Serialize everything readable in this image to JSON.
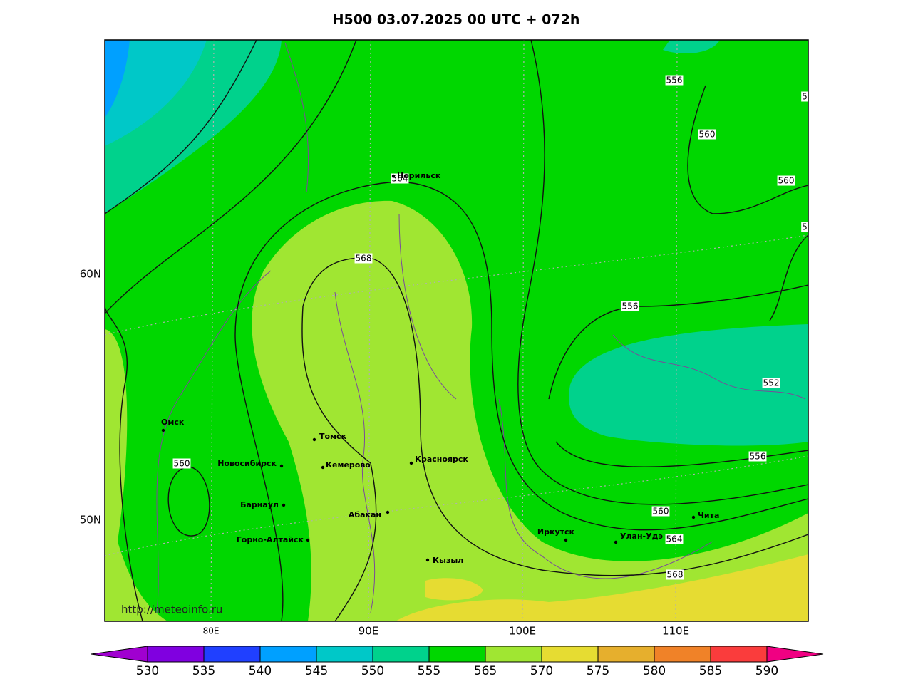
{
  "title": "H500  03.07.2025 00 UTC + 072h",
  "axes": {
    "lon_labels": [
      "80E",
      "90E",
      "100E",
      "110E"
    ],
    "lat_labels": [
      "60N",
      "50N"
    ]
  },
  "cities": [
    "Норильск",
    "Омск",
    "Томск",
    "Новосибирск",
    "Кемерово",
    "Красноярск",
    "Барнаул",
    "Абакан",
    "Горно-Алтайск",
    "Кызыл",
    "Иркутск",
    "Улан-Удэ",
    "Чита"
  ],
  "contour_labels": [
    "556",
    "5",
    "560",
    "564",
    "560",
    "5",
    "568",
    "556",
    "552",
    "556",
    "560",
    "560",
    "564",
    "568"
  ],
  "source": "http://meteoinfo.ru",
  "colorbar": {
    "labels": [
      530,
      535,
      540,
      545,
      550,
      555,
      565,
      570,
      575,
      580,
      585,
      590
    ],
    "colors": [
      "#a000d0",
      "#8000e0",
      "#2040ff",
      "#00a0ff",
      "#00c8c8",
      "#00d28c",
      "#00d700",
      "#a0e632",
      "#e6dc32",
      "#e6af2d",
      "#f08228",
      "#fa3c3c",
      "#f00082"
    ]
  }
}
